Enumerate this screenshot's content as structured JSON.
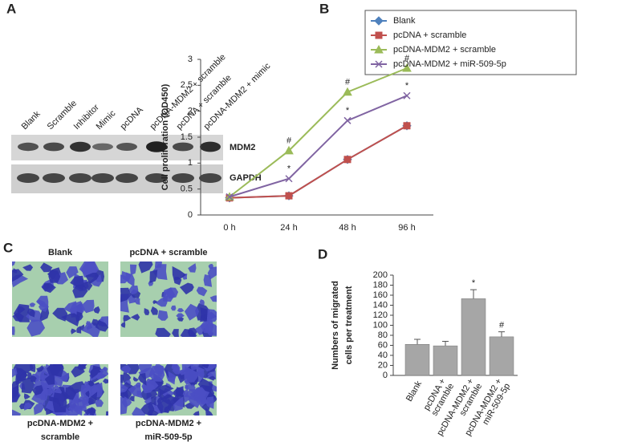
{
  "panel_labels": [
    "A",
    "B",
    "C",
    "D"
  ],
  "blot": {
    "lanes": [
      "Blank",
      "Scramble",
      "Inhibitor",
      "Mimic",
      "pcDNA",
      "pcDNA-MDM2 + scramble",
      "pcDNA + scramble",
      "pcDNA-MDM2 + mimic"
    ],
    "bands": [
      "MDM2",
      "GAPDH"
    ]
  },
  "micrographs": {
    "labels": [
      [
        "Blank"
      ],
      [
        "pcDNA + scramble"
      ],
      [
        "pcDNA-MDM2 +",
        "scramble"
      ],
      [
        "pcDNA-MDM2 +",
        "miR-509-5p"
      ]
    ]
  },
  "chart_data": [
    {
      "type": "line",
      "ylabel": "Cell proliferation (OD450)",
      "categories": [
        "0 h",
        "24 h",
        "48 h",
        "96 h"
      ],
      "ylim": [
        0,
        3
      ],
      "yticks": [
        0,
        0.5,
        1,
        1.5,
        2,
        2.5,
        3
      ],
      "series": [
        {
          "name": "Blank",
          "color": "#4f81bd",
          "marker": "diamond",
          "values": [
            0.33,
            0.37,
            1.07,
            1.72
          ],
          "point_labels": [
            null,
            null,
            null,
            null
          ]
        },
        {
          "name": "pcDNA + scramble",
          "color": "#c0504d",
          "marker": "square",
          "values": [
            0.33,
            0.37,
            1.07,
            1.72
          ],
          "point_labels": [
            null,
            null,
            null,
            null
          ]
        },
        {
          "name": "pcDNA-MDM2 + scramble",
          "color": "#9bbb59",
          "marker": "triangle",
          "values": [
            0.35,
            1.24,
            2.37,
            2.83
          ],
          "point_labels": [
            null,
            "#",
            "#",
            "#"
          ]
        },
        {
          "name": "pcDNA-MDM2 + miR-509-5p",
          "color": "#8064a2",
          "marker": "x",
          "values": [
            0.35,
            0.7,
            1.82,
            2.3
          ],
          "point_labels": [
            null,
            "*",
            "*",
            "*"
          ]
        }
      ]
    },
    {
      "type": "bar",
      "ylabel": [
        "Numbers of migrated",
        "cells per treatment"
      ],
      "categories": [
        [
          "Blank"
        ],
        [
          "pcDNA +",
          "scramble"
        ],
        [
          "pcDNA-MDM2 +",
          "scramble"
        ],
        [
          "pcDNA-MDM2 +",
          "miR-509-5p"
        ]
      ],
      "values": [
        62,
        59,
        153,
        77
      ],
      "errors": [
        10,
        9,
        18,
        10
      ],
      "point_labels": [
        null,
        null,
        "*",
        "#"
      ],
      "color": "#a6a6a6",
      "ylim": [
        0,
        200
      ],
      "yticks": [
        0,
        20,
        40,
        60,
        80,
        100,
        120,
        140,
        160,
        180,
        200
      ]
    }
  ]
}
